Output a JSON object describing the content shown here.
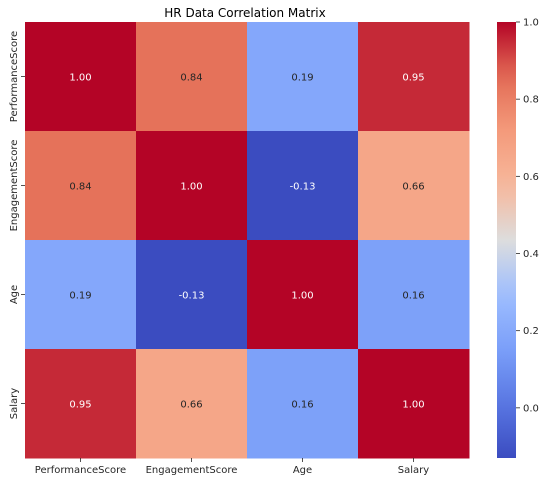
{
  "chart_data": {
    "type": "heatmap",
    "title": "HR Data Correlation Matrix",
    "x_labels": [
      "PerformanceScore",
      "EngagementScore",
      "Age",
      "Salary"
    ],
    "y_labels": [
      "PerformanceScore",
      "EngagementScore",
      "Age",
      "Salary"
    ],
    "values": [
      [
        1.0,
        0.84,
        0.19,
        0.95
      ],
      [
        0.84,
        1.0,
        -0.13,
        0.66
      ],
      [
        0.19,
        -0.13,
        1.0,
        0.16
      ],
      [
        0.95,
        0.66,
        0.16,
        1.0
      ]
    ],
    "annotation_format": "2 decimals",
    "colormap": "coolwarm",
    "color_range": [
      -0.13,
      1.0
    ],
    "colorbar_ticks": [
      0.0,
      0.2,
      0.4,
      0.6,
      0.8,
      1.0
    ],
    "colorbar_tick_labels": [
      "0.0",
      "0.2",
      "0.4",
      "0.6",
      "0.8",
      "1.0"
    ],
    "colors": {
      "cmap_low": "#3b4cc0",
      "cmap_mid": "#dddddd",
      "cmap_high": "#b40426",
      "text_on_dark": "#ffffff",
      "text_on_light": "#262626",
      "axis": "#262626"
    }
  }
}
